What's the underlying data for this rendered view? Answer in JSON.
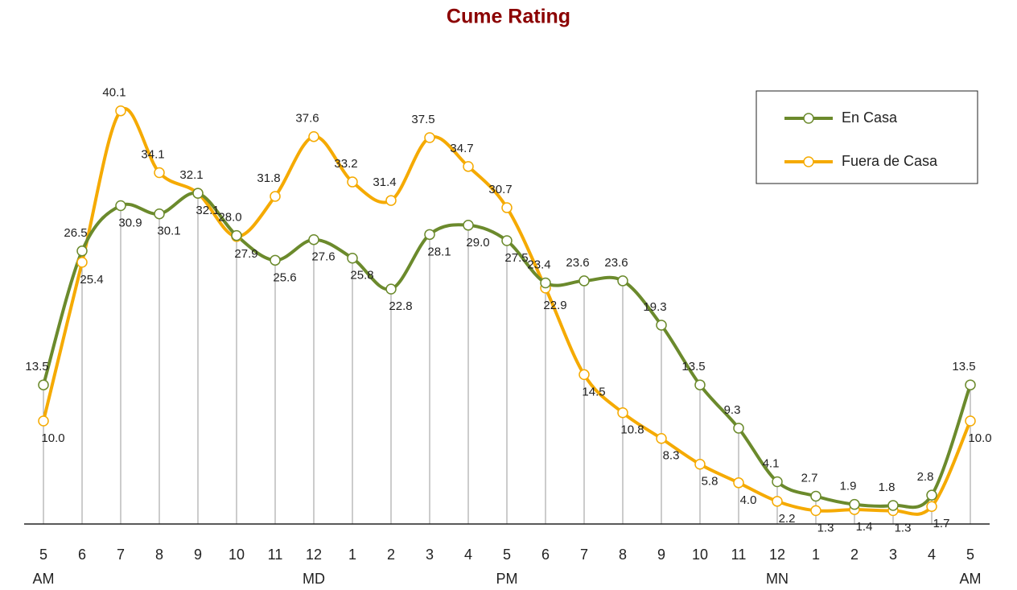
{
  "chart_data": {
    "type": "line",
    "title": "Cume Rating",
    "categories": [
      "5",
      "6",
      "7",
      "8",
      "9",
      "10",
      "11",
      "12",
      "1",
      "2",
      "3",
      "4",
      "5",
      "6",
      "7",
      "8",
      "9",
      "10",
      "11",
      "12",
      "1",
      "2",
      "3",
      "4",
      "5"
    ],
    "x_sublabels": [
      "AM",
      null,
      null,
      null,
      null,
      null,
      null,
      "MD",
      null,
      null,
      null,
      null,
      "PM",
      null,
      null,
      null,
      null,
      null,
      null,
      "MN",
      null,
      null,
      null,
      null,
      "AM"
    ],
    "ylim": [
      0,
      45
    ],
    "legend": "upper right",
    "series": [
      {
        "name": "En Casa",
        "color": "#6b8a2c",
        "values": [
          13.5,
          26.5,
          30.9,
          30.1,
          32.1,
          28.0,
          25.6,
          27.6,
          25.8,
          22.8,
          28.1,
          29.0,
          27.5,
          23.4,
          23.6,
          23.6,
          19.3,
          13.5,
          9.3,
          4.1,
          2.7,
          1.9,
          1.8,
          2.8,
          13.5
        ],
        "value_labels": [
          "13.5",
          "26.5",
          "30.9",
          "30.1",
          "32.1",
          "28.0",
          "25.6",
          "27.6",
          "25.8",
          "22.8",
          "28.1",
          "29.0",
          "27.5",
          "23.4",
          "23.6",
          "23.6",
          "19.3",
          "13.5",
          "9.3",
          "4.1",
          "2.7",
          "1.9",
          "1.8",
          "2.8",
          "13.5"
        ]
      },
      {
        "name": "Fuera de Casa",
        "color": "#f5aa00",
        "values": [
          10.0,
          25.4,
          40.1,
          34.1,
          32.1,
          27.9,
          31.8,
          37.6,
          33.2,
          31.4,
          37.5,
          34.7,
          30.7,
          22.9,
          14.5,
          10.8,
          8.3,
          5.8,
          4.0,
          2.2,
          1.3,
          1.4,
          1.3,
          1.7,
          10.0
        ],
        "value_labels": [
          "10.0",
          "25.4",
          "40.1",
          "34.1",
          "32.1",
          "27.9",
          "31.8",
          "37.6",
          "33.2",
          "31.4",
          "37.5",
          "34.7",
          "30.7",
          "22.9",
          "14.5",
          "10.8",
          "8.3",
          "5.8",
          "4.0",
          "2.2",
          "1.3",
          "1.4",
          "1.3",
          "1.7",
          "10.0"
        ]
      }
    ]
  }
}
